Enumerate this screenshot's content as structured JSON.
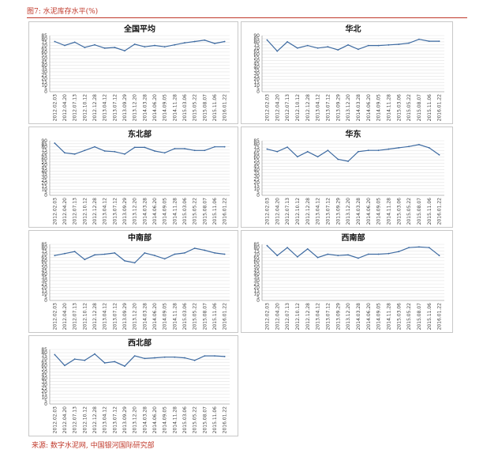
{
  "figure": {
    "caption": "图7: 水泥库存水平(%)",
    "source": "来源: 数字水泥网, 中国银河国际研究部"
  },
  "chart_data": [
    {
      "type": "line",
      "title": "全国平均",
      "ylim": [
        0,
        85
      ],
      "yticks": [
        0,
        5,
        10,
        15,
        20,
        25,
        30,
        35,
        40,
        45,
        50,
        55,
        60,
        65,
        70,
        75,
        80,
        85
      ],
      "categories": [
        "2012.02.03",
        "2012.04.20",
        "2012.07.13",
        "2012.10.12",
        "2012.12.28",
        "2013.04.12",
        "2013.07.12",
        "2013.09.29",
        "2013.12.20",
        "2014.03.28",
        "2014.06.20",
        "2014.09.05",
        "2014.11.28",
        "2015.03.06",
        "2015.05.22",
        "2015.08.07",
        "2015.11.06",
        "2016.01.22"
      ],
      "series": [
        {
          "values": [
            76,
            70,
            75,
            67,
            71,
            66,
            67,
            62,
            72,
            68,
            70,
            68,
            71,
            74,
            76,
            78,
            73,
            76
          ]
        }
      ],
      "grid": true
    },
    {
      "type": "line",
      "title": "华北",
      "ylim": [
        0,
        90
      ],
      "yticks": [
        0,
        5,
        10,
        15,
        20,
        25,
        30,
        35,
        40,
        45,
        50,
        55,
        60,
        65,
        70,
        75,
        80,
        85,
        90
      ],
      "categories": [
        "2012.02.03",
        "2012.04.20",
        "2012.07.13",
        "2012.10.12",
        "2012.12.28",
        "2013.04.12",
        "2013.07.12",
        "2013.09.29",
        "2013.12.20",
        "2014.03.28",
        "2014.06.20",
        "2014.09.05",
        "2014.11.28",
        "2015.03.06",
        "2015.05.22",
        "2015.08.07",
        "2015.11.06",
        "2016.01.22"
      ],
      "series": [
        {
          "values": [
            83,
            65,
            80,
            70,
            74,
            70,
            72,
            67,
            75,
            68,
            74,
            74,
            75,
            76,
            78,
            84,
            81,
            81
          ]
        }
      ],
      "grid": true
    },
    {
      "type": "line",
      "title": "东北部",
      "ylim": [
        0,
        90
      ],
      "yticks": [
        0,
        5,
        10,
        15,
        20,
        25,
        30,
        35,
        40,
        45,
        50,
        55,
        60,
        65,
        70,
        75,
        80,
        85,
        90
      ],
      "categories": [
        "2012.02.03",
        "2012.04.20",
        "2012.07.13",
        "2012.10.12",
        "2012.12.28",
        "2013.04.12",
        "2013.07.12",
        "2013.09.29",
        "2013.12.20",
        "2014.03.28",
        "2014.06.20",
        "2014.09.05",
        "2014.11.28",
        "2015.03.06",
        "2015.05.22",
        "2015.08.07",
        "2015.11.06",
        "2016.01.22"
      ],
      "series": [
        {
          "values": [
            86,
            70,
            68,
            74,
            80,
            73,
            72,
            68,
            79,
            79,
            73,
            70,
            77,
            77,
            74,
            74,
            80,
            80
          ]
        }
      ],
      "grid": true
    },
    {
      "type": "line",
      "title": "华东",
      "ylim": [
        0,
        85
      ],
      "yticks": [
        0,
        5,
        10,
        15,
        20,
        25,
        30,
        35,
        40,
        45,
        50,
        55,
        60,
        65,
        70,
        75,
        80,
        85
      ],
      "categories": [
        "2012.02.03",
        "2012.04.20",
        "2012.07.13",
        "2012.10.12",
        "2012.12.28",
        "2013.04.12",
        "2013.07.12",
        "2013.09.29",
        "2013.12.20",
        "2014.03.28",
        "2014.06.20",
        "2014.09.05",
        "2014.11.28",
        "2015.03.06",
        "2015.05.22",
        "2015.08.07",
        "2015.11.06",
        "2016.01.22"
      ],
      "series": [
        {
          "values": [
            72,
            68,
            75,
            60,
            68,
            60,
            70,
            56,
            53,
            68,
            70,
            70,
            72,
            74,
            76,
            79,
            74,
            63
          ]
        }
      ],
      "grid": true
    },
    {
      "type": "line",
      "title": "中南部",
      "ylim": [
        0,
        85
      ],
      "yticks": [
        0,
        5,
        10,
        15,
        20,
        25,
        30,
        35,
        40,
        45,
        50,
        55,
        60,
        65,
        70,
        75,
        80,
        85
      ],
      "categories": [
        "2012.02.03",
        "2012.04.20",
        "2012.07.13",
        "2012.10.12",
        "2012.12.28",
        "2013.04.12",
        "2013.07.12",
        "2013.09.29",
        "2013.12.20",
        "2014.03.28",
        "2014.06.20",
        "2014.09.05",
        "2014.11.28",
        "2015.03.06",
        "2015.05.22",
        "2015.08.07",
        "2015.11.06",
        "2016.01.22"
      ],
      "series": [
        {
          "values": [
            68,
            71,
            74,
            62,
            69,
            70,
            72,
            60,
            57,
            72,
            68,
            63,
            70,
            72,
            79,
            76,
            72,
            70
          ]
        }
      ],
      "grid": true
    },
    {
      "type": "line",
      "title": "西南部",
      "ylim": [
        0,
        85
      ],
      "yticks": [
        0,
        5,
        10,
        15,
        20,
        25,
        30,
        35,
        40,
        45,
        50,
        55,
        60,
        65,
        70,
        75,
        80,
        85
      ],
      "categories": [
        "2012.02.03",
        "2012.04.20",
        "2012.07.13",
        "2012.10.12",
        "2012.12.28",
        "2013.04.12",
        "2013.07.12",
        "2013.09.29",
        "2013.12.20",
        "2014.03.28",
        "2014.06.20",
        "2014.09.05",
        "2014.11.28",
        "2015.03.06",
        "2015.05.22",
        "2015.08.07",
        "2015.11.06",
        "2016.01.22"
      ],
      "series": [
        {
          "values": [
            83,
            68,
            80,
            66,
            78,
            65,
            70,
            68,
            69,
            64,
            70,
            70,
            71,
            74,
            80,
            81,
            80,
            68
          ]
        }
      ],
      "grid": true
    },
    {
      "type": "line",
      "title": "西北部",
      "ylim": [
        0,
        85
      ],
      "yticks": [
        0,
        5,
        10,
        15,
        20,
        25,
        30,
        35,
        40,
        45,
        50,
        55,
        60,
        65,
        70,
        75,
        80,
        85
      ],
      "categories": [
        "2012.02.03",
        "2012.04.20",
        "2012.07.13",
        "2012.10.12",
        "2012.12.28",
        "2013.04.12",
        "2013.07.12",
        "2013.09.29",
        "2013.12.20",
        "2014.03.28",
        "2014.06.20",
        "2014.09.05",
        "2014.11.28",
        "2015.03.06",
        "2015.05.22",
        "2015.08.07",
        "2015.11.06",
        "2016.01.22"
      ],
      "series": [
        {
          "values": [
            77,
            60,
            70,
            68,
            78,
            64,
            66,
            59,
            75,
            71,
            72,
            73,
            73,
            72,
            68,
            75,
            75,
            74
          ]
        }
      ],
      "grid": true
    }
  ],
  "colors": {
    "line": "#3d6aa1",
    "caption": "#c0392b",
    "grid": "#e3e3e3"
  }
}
